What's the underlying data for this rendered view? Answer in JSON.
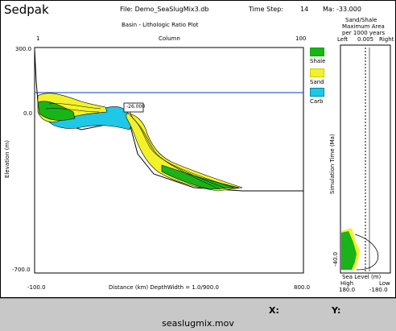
{
  "app": {
    "title": "Sedpak"
  },
  "header": {
    "file_label": "File: Demo_SeaSlugMix3.db",
    "time_step_label": "Time Step:",
    "time_step_value": "14",
    "ma_label": "Ma: -33.000"
  },
  "plot": {
    "title": "Basin - Lithologic Ratio Plot",
    "column_label": "Column",
    "col_left": "1",
    "col_right": "100",
    "y_axis_label": "Elevation (m)",
    "y_ticks": [
      "300.0",
      "0.0",
      "-700.0"
    ],
    "x_left": "-100.0",
    "x_right": "800.0",
    "x_axis_label": "Distance (km)   DepthWidth = 1.0/900.0",
    "marker_label": "-26.000"
  },
  "legend": {
    "items": [
      {
        "label": "Shale",
        "color": "#18b418"
      },
      {
        "label": "Sand",
        "color": "#f2f22a"
      },
      {
        "label": "Carb",
        "color": "#1ec8e6"
      }
    ]
  },
  "side_panel": {
    "title_line1": "Sand/Shale",
    "title_line2": "Maximum Area",
    "title_line3": "per 1000 years",
    "left_label": "Left",
    "mid_value": "0.005",
    "right_label": "Right",
    "time_axis_label": "Simulation Time (Ma)",
    "time_tick": "-40.0",
    "sea_level_label": "Sea Level (m)",
    "high_label": "High",
    "low_label": "Low",
    "high_value": "180.0",
    "low_value": "-180.0"
  },
  "status": {
    "x_label": "X:",
    "y_label": "Y:",
    "movie_name": "seaslugmix.mov"
  }
}
